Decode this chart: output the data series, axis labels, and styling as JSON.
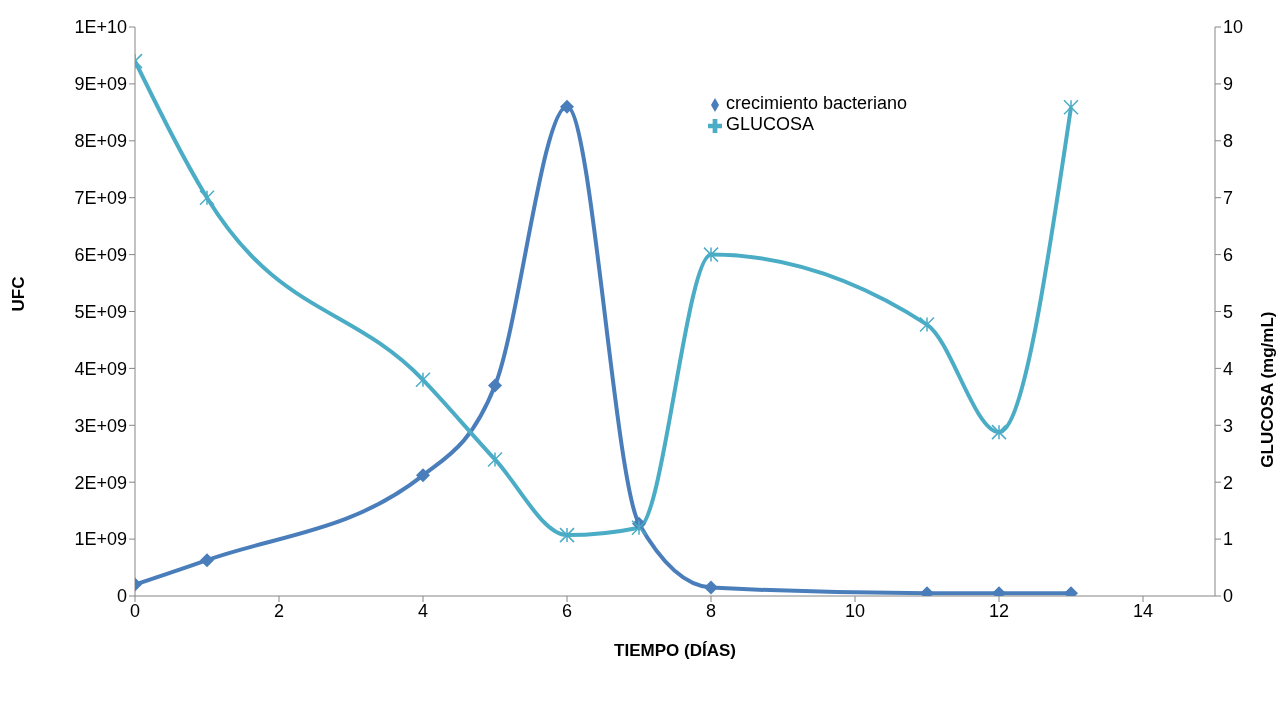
{
  "chart_data": {
    "type": "line",
    "xlabel": "TIEMPO (DÍAS)",
    "ylabel": "UFC",
    "y2label": "GLUCOSA (mg/mL)",
    "x": [
      0,
      1,
      4,
      5,
      6,
      7,
      8,
      11,
      12,
      13
    ],
    "series": [
      {
        "name": "crecimiento bacteriano",
        "color": "#4a7ebb",
        "marker": "diamond",
        "values": [
          200000000,
          630000000,
          2120000000,
          3700000000,
          8600000000,
          1270000000,
          150000000,
          50000000,
          50000000,
          50000000
        ]
      },
      {
        "name": "GLUCOSA",
        "color": "#4bacc6",
        "marker": "cross",
        "axis": "y2",
        "values": [
          9.4,
          7.0,
          3.8,
          2.4,
          1.07,
          1.2,
          6.0,
          4.77,
          2.88,
          8.59
        ]
      }
    ],
    "xlim": [
      0,
      15
    ],
    "xticks": [
      0,
      2,
      4,
      6,
      8,
      10,
      12,
      14
    ],
    "ylim": [
      0,
      10000000000
    ],
    "yticks": [
      0,
      {
        "value": 1000000000,
        "label": "1E+09"
      },
      {
        "value": 2000000000,
        "label": "2E+09"
      },
      {
        "value": 3000000000,
        "label": "3E+09"
      },
      {
        "value": 4000000000,
        "label": "4E+09"
      },
      {
        "value": 5000000000,
        "label": "5E+09"
      },
      {
        "value": 6000000000,
        "label": "6E+09"
      },
      {
        "value": 7000000000,
        "label": "7E+09"
      },
      {
        "value": 8000000000,
        "label": "8E+09"
      },
      {
        "value": 9000000000,
        "label": "9E+09"
      },
      {
        "value": 10000000000,
        "label": "1E+10"
      }
    ],
    "y2lim": [
      0,
      10
    ],
    "y2ticks": [
      0,
      1,
      2,
      3,
      4,
      5,
      6,
      7,
      8,
      9,
      10
    ],
    "legend": "top right",
    "line_style": "solid"
  }
}
